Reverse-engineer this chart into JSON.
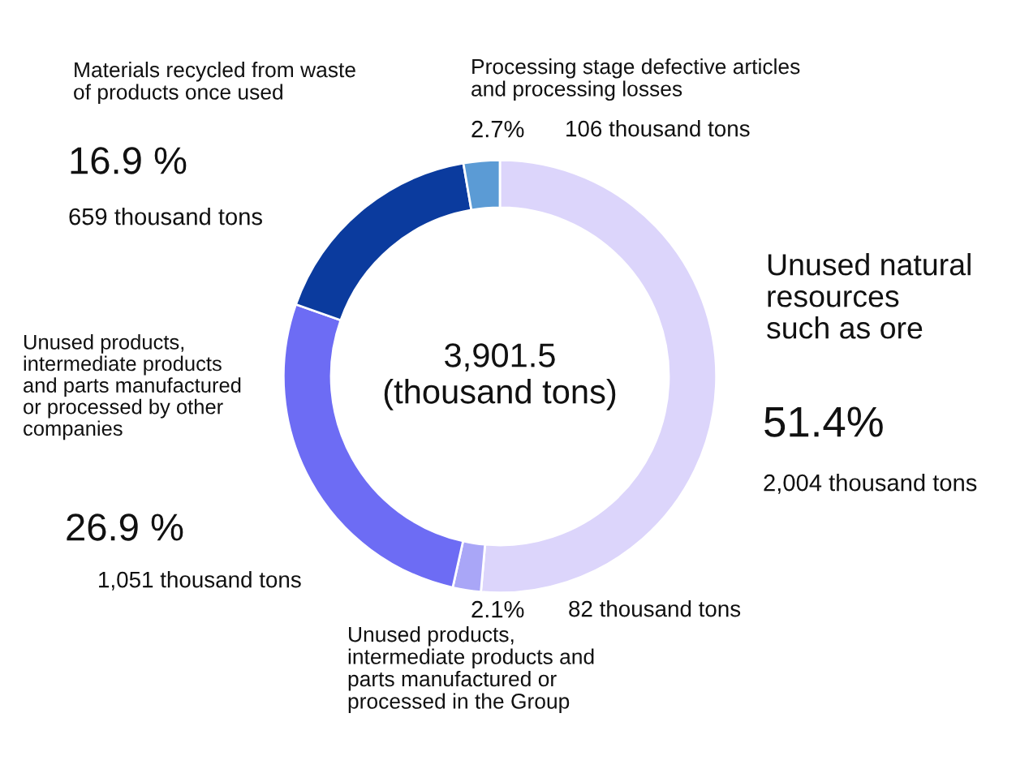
{
  "chart_data": {
    "type": "donut",
    "categories": [
      "Unused natural\nresources\nsuch as ore",
      "Unused products,\nintermediate products and\nparts manufactured or\nprocessed in the Group",
      "Unused products,\nintermediate products\nand parts manufactured\nor processed by other\ncompanies",
      "Materials recycled from waste\nof products once used",
      "Processing stage defective articles\nand processing losses"
    ],
    "values": [
      51.4,
      2.1,
      26.9,
      16.9,
      2.7
    ],
    "colors": [
      "#dcd5fb",
      "#a9a6f7",
      "#6d6cf4",
      "#0b3b9e",
      "#5b9bd5"
    ],
    "value_labels": [
      "51.4%",
      "2.1%",
      "26.9 %",
      "16.9 %",
      "2.7%"
    ],
    "annotations": [
      "2,004 thousand tons",
      "82 thousand tons",
      "1,051 thousand tons",
      "659 thousand tons",
      "106 thousand tons",
      "3,901.5\n(thousand tons)"
    ],
    "legend": false
  }
}
